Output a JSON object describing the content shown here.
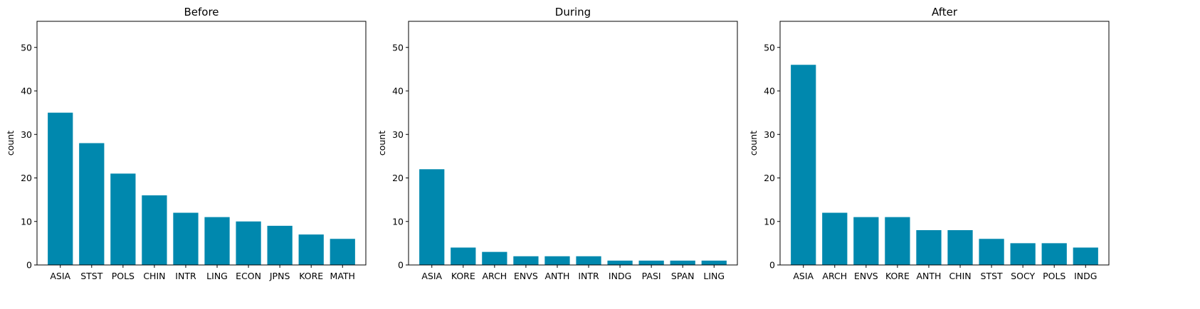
{
  "chart_data": [
    {
      "type": "bar",
      "title": "Before",
      "ylabel": "count",
      "xlabel": "",
      "ylim": [
        0,
        56
      ],
      "yticks": [
        0,
        10,
        20,
        30,
        40,
        50
      ],
      "grid": false,
      "color": "#0088ae",
      "categories": [
        "ASIA",
        "STST",
        "POLS",
        "CHIN",
        "INTR",
        "LING",
        "ECON",
        "JPNS",
        "KORE",
        "MATH"
      ],
      "values": [
        35,
        28,
        21,
        16,
        12,
        11,
        10,
        9,
        7,
        6
      ]
    },
    {
      "type": "bar",
      "title": "During",
      "ylabel": "count",
      "xlabel": "",
      "ylim": [
        0,
        56
      ],
      "yticks": [
        0,
        10,
        20,
        30,
        40,
        50
      ],
      "grid": false,
      "color": "#0088ae",
      "categories": [
        "ASIA",
        "KORE",
        "ARCH",
        "ENVS",
        "ANTH",
        "INTR",
        "INDG",
        "PASI",
        "SPAN",
        "LING"
      ],
      "values": [
        22,
        4,
        3,
        2,
        2,
        2,
        1,
        1,
        1,
        1
      ]
    },
    {
      "type": "bar",
      "title": "After",
      "ylabel": "count",
      "xlabel": "",
      "ylim": [
        0,
        56
      ],
      "yticks": [
        0,
        10,
        20,
        30,
        40,
        50
      ],
      "grid": false,
      "color": "#0088ae",
      "categories": [
        "ASIA",
        "ARCH",
        "ENVS",
        "KORE",
        "ANTH",
        "CHIN",
        "STST",
        "SOCY",
        "POLS",
        "INDG"
      ],
      "values": [
        46,
        12,
        11,
        11,
        8,
        8,
        6,
        5,
        5,
        4
      ]
    }
  ]
}
